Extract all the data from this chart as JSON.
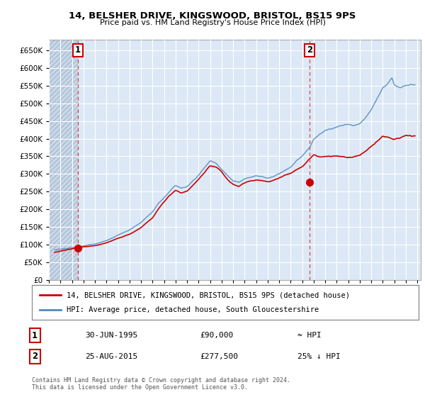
{
  "title_line1": "14, BELSHER DRIVE, KINGSWOOD, BRISTOL, BS15 9PS",
  "title_line2": "Price paid vs. HM Land Registry's House Price Index (HPI)",
  "ylim": [
    0,
    680000
  ],
  "xlim_start": 1993.0,
  "xlim_end": 2025.3,
  "sale1_x": 1995.5,
  "sale1_y": 90000,
  "sale2_x": 2015.65,
  "sale2_y": 277500,
  "red_line_color": "#cc0000",
  "blue_line_color": "#5588bb",
  "plot_bg": "#dce8f5",
  "grid_color": "#ffffff",
  "legend_label1": "14, BELSHER DRIVE, KINGSWOOD, BRISTOL, BS15 9PS (detached house)",
  "legend_label2": "HPI: Average price, detached house, South Gloucestershire",
  "note1_date": "30-JUN-1995",
  "note1_price": "£90,000",
  "note1_hpi": "≈ HPI",
  "note2_date": "25-AUG-2015",
  "note2_price": "£277,500",
  "note2_hpi": "25% ↓ HPI",
  "footer": "Contains HM Land Registry data © Crown copyright and database right 2024.\nThis data is licensed under the Open Government Licence v3.0.",
  "vline_color": "#dd4444"
}
